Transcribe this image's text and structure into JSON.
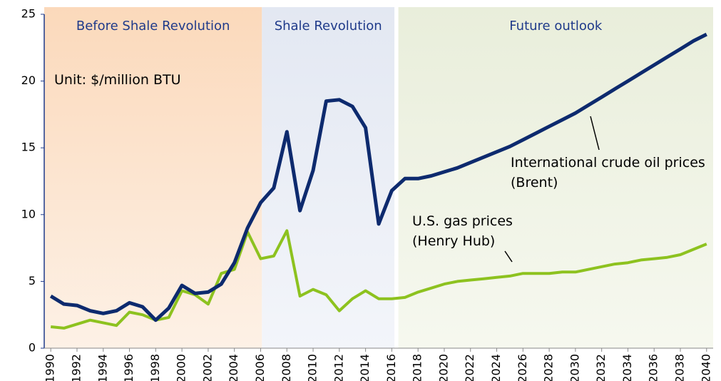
{
  "chart_data": {
    "type": "line",
    "unit_note": "Unit: $/million BTU",
    "regions": [
      {
        "label": "Before Shale Revolution",
        "from": 1989.5,
        "to": 2006.1
      },
      {
        "label": "Shale Revolution",
        "from": 2006.1,
        "to": 2016.2
      },
      {
        "label": "Future outlook",
        "from": 2016.5,
        "to": 2040.5
      }
    ],
    "x": [
      1990,
      1991,
      1992,
      1993,
      1994,
      1995,
      1996,
      1997,
      1998,
      1999,
      2000,
      2001,
      2002,
      2003,
      2004,
      2005,
      2006,
      2007,
      2008,
      2009,
      2010,
      2011,
      2012,
      2013,
      2014,
      2015,
      2016,
      2017,
      2018,
      2019,
      2020,
      2021,
      2022,
      2023,
      2024,
      2025,
      2026,
      2027,
      2028,
      2029,
      2030,
      2031,
      2032,
      2033,
      2034,
      2035,
      2036,
      2037,
      2038,
      2039,
      2040
    ],
    "series": [
      {
        "name": "International crude oil prices (Brent)",
        "color": "#0d2a6e",
        "values": [
          3.9,
          3.3,
          3.2,
          2.8,
          2.6,
          2.8,
          3.4,
          3.1,
          2.1,
          3.0,
          4.7,
          4.1,
          4.2,
          4.8,
          6.4,
          9.0,
          10.9,
          12.0,
          16.2,
          10.3,
          13.3,
          18.5,
          18.6,
          18.1,
          16.5,
          9.3,
          11.8,
          12.7,
          12.7,
          12.9,
          13.2,
          13.5,
          13.9,
          14.3,
          14.7,
          15.1,
          15.6,
          16.1,
          16.6,
          17.1,
          17.6,
          18.2,
          18.8,
          19.4,
          20.0,
          20.6,
          21.2,
          21.8,
          22.4,
          23.0,
          23.5
        ]
      },
      {
        "name": "U.S. gas prices (Henry Hub)",
        "color": "#8dc21f",
        "values": [
          1.6,
          1.5,
          1.8,
          2.1,
          1.9,
          1.7,
          2.7,
          2.5,
          2.1,
          2.3,
          4.3,
          4.0,
          3.3,
          5.6,
          5.9,
          8.7,
          6.7,
          6.9,
          8.8,
          3.9,
          4.4,
          4.0,
          2.8,
          3.7,
          4.3,
          3.7,
          3.7,
          3.8,
          4.2,
          4.5,
          4.8,
          5.0,
          5.1,
          5.2,
          5.3,
          5.4,
          5.6,
          5.6,
          5.6,
          5.7,
          5.7,
          5.9,
          6.1,
          6.3,
          6.4,
          6.6,
          6.7,
          6.8,
          7.0,
          7.4,
          7.8
        ]
      }
    ],
    "xlim": [
      1989.5,
      2040.5
    ],
    "xticks": [
      1990,
      1992,
      1994,
      1996,
      1998,
      2000,
      2002,
      2004,
      2006,
      2008,
      2010,
      2012,
      2014,
      2016,
      2018,
      2020,
      2022,
      2024,
      2026,
      2028,
      2030,
      2032,
      2034,
      2036,
      2038,
      2040
    ],
    "ylim": [
      0,
      25
    ],
    "yticks": [
      0,
      5,
      10,
      15,
      20,
      25
    ]
  }
}
